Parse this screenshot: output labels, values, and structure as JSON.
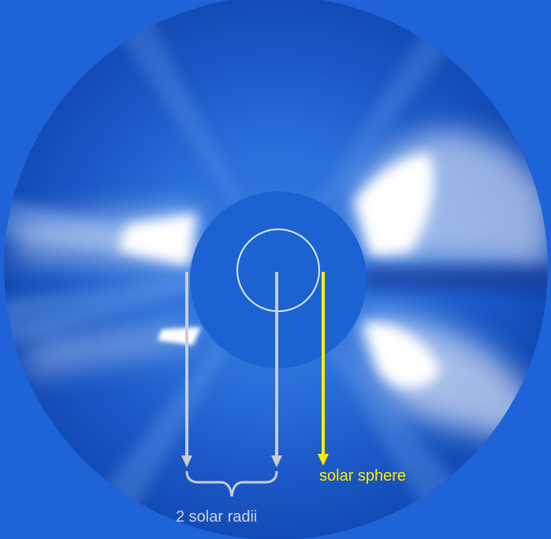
{
  "image": {
    "subject": "solar coronagraph",
    "colors": {
      "background_field": "#1f63d8",
      "outer_ring": "#1553c8",
      "occulter_disk": "#1c62d2",
      "corona_glow": "#ffffff",
      "sun_outline": "#dfe9f5",
      "radii_arrows": "#c9cdd4",
      "sphere_arrow": "#ffee00"
    }
  },
  "annotations": {
    "radii_label": "2 solar radii",
    "sphere_label": "solar sphere"
  }
}
